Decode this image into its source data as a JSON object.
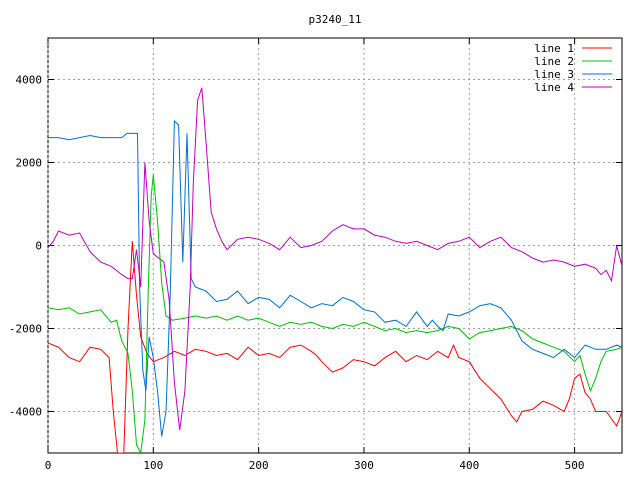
{
  "chart_data": {
    "type": "line",
    "title": "p3240_11",
    "xlabel": "",
    "ylabel": "",
    "xlim": [
      0,
      545
    ],
    "ylim": [
      -5000,
      5000
    ],
    "xticks": [
      0,
      100,
      200,
      300,
      400,
      500
    ],
    "yticks": [
      -4000,
      -2000,
      0,
      2000,
      4000
    ],
    "grid": true,
    "legend_position": "top-right",
    "series": [
      {
        "name": "line 1",
        "color": "#ff0000",
        "points": [
          [
            0,
            -2350
          ],
          [
            10,
            -2450
          ],
          [
            20,
            -2700
          ],
          [
            30,
            -2800
          ],
          [
            40,
            -2450
          ],
          [
            50,
            -2500
          ],
          [
            58,
            -2700
          ],
          [
            62,
            -4000
          ],
          [
            66,
            -5000
          ],
          [
            72,
            -5000
          ],
          [
            76,
            -2000
          ],
          [
            80,
            100
          ],
          [
            84,
            -1200
          ],
          [
            88,
            -2200
          ],
          [
            94,
            -2600
          ],
          [
            100,
            -2800
          ],
          [
            110,
            -2700
          ],
          [
            120,
            -2550
          ],
          [
            130,
            -2650
          ],
          [
            140,
            -2500
          ],
          [
            150,
            -2550
          ],
          [
            160,
            -2650
          ],
          [
            170,
            -2600
          ],
          [
            180,
            -2750
          ],
          [
            190,
            -2450
          ],
          [
            200,
            -2650
          ],
          [
            210,
            -2600
          ],
          [
            220,
            -2700
          ],
          [
            230,
            -2450
          ],
          [
            240,
            -2400
          ],
          [
            250,
            -2550
          ],
          [
            255,
            -2650
          ],
          [
            260,
            -2800
          ],
          [
            270,
            -3050
          ],
          [
            280,
            -2950
          ],
          [
            290,
            -2750
          ],
          [
            300,
            -2800
          ],
          [
            310,
            -2900
          ],
          [
            320,
            -2700
          ],
          [
            330,
            -2550
          ],
          [
            340,
            -2800
          ],
          [
            350,
            -2650
          ],
          [
            360,
            -2750
          ],
          [
            370,
            -2550
          ],
          [
            380,
            -2700
          ],
          [
            385,
            -2400
          ],
          [
            390,
            -2700
          ],
          [
            400,
            -2800
          ],
          [
            410,
            -3200
          ],
          [
            420,
            -3450
          ],
          [
            430,
            -3700
          ],
          [
            440,
            -4100
          ],
          [
            445,
            -4250
          ],
          [
            450,
            -4000
          ],
          [
            460,
            -3950
          ],
          [
            470,
            -3750
          ],
          [
            480,
            -3850
          ],
          [
            490,
            -4000
          ],
          [
            495,
            -3700
          ],
          [
            500,
            -3200
          ],
          [
            505,
            -3100
          ],
          [
            510,
            -3550
          ],
          [
            515,
            -3700
          ],
          [
            520,
            -4000
          ],
          [
            530,
            -4000
          ],
          [
            540,
            -4350
          ],
          [
            545,
            -4000
          ]
        ]
      },
      {
        "name": "line 2",
        "color": "#00c000",
        "points": [
          [
            0,
            -1500
          ],
          [
            10,
            -1550
          ],
          [
            20,
            -1500
          ],
          [
            30,
            -1650
          ],
          [
            40,
            -1600
          ],
          [
            50,
            -1550
          ],
          [
            60,
            -1850
          ],
          [
            65,
            -1800
          ],
          [
            70,
            -2300
          ],
          [
            76,
            -2600
          ],
          [
            80,
            -3500
          ],
          [
            84,
            -4800
          ],
          [
            88,
            -5000
          ],
          [
            92,
            -4200
          ],
          [
            95,
            -1200
          ],
          [
            98,
            1200
          ],
          [
            100,
            1700
          ],
          [
            104,
            600
          ],
          [
            108,
            -900
          ],
          [
            112,
            -1700
          ],
          [
            118,
            -1800
          ],
          [
            130,
            -1750
          ],
          [
            140,
            -1700
          ],
          [
            150,
            -1750
          ],
          [
            160,
            -1700
          ],
          [
            170,
            -1800
          ],
          [
            180,
            -1700
          ],
          [
            190,
            -1800
          ],
          [
            200,
            -1750
          ],
          [
            210,
            -1850
          ],
          [
            220,
            -1950
          ],
          [
            230,
            -1850
          ],
          [
            240,
            -1900
          ],
          [
            250,
            -1850
          ],
          [
            260,
            -1950
          ],
          [
            270,
            -2000
          ],
          [
            280,
            -1900
          ],
          [
            290,
            -1950
          ],
          [
            300,
            -1850
          ],
          [
            310,
            -1950
          ],
          [
            320,
            -2050
          ],
          [
            330,
            -2000
          ],
          [
            340,
            -2100
          ],
          [
            350,
            -2050
          ],
          [
            360,
            -2100
          ],
          [
            370,
            -2050
          ],
          [
            380,
            -1950
          ],
          [
            390,
            -2000
          ],
          [
            400,
            -2250
          ],
          [
            410,
            -2100
          ],
          [
            420,
            -2050
          ],
          [
            430,
            -2000
          ],
          [
            440,
            -1950
          ],
          [
            450,
            -2050
          ],
          [
            460,
            -2250
          ],
          [
            470,
            -2350
          ],
          [
            480,
            -2450
          ],
          [
            490,
            -2550
          ],
          [
            500,
            -2800
          ],
          [
            505,
            -2650
          ],
          [
            510,
            -3100
          ],
          [
            515,
            -3500
          ],
          [
            520,
            -3200
          ],
          [
            525,
            -2800
          ],
          [
            530,
            -2550
          ],
          [
            540,
            -2500
          ],
          [
            545,
            -2450
          ]
        ]
      },
      {
        "name": "line 3",
        "color": "#0070d0",
        "points": [
          [
            0,
            2600
          ],
          [
            10,
            2600
          ],
          [
            20,
            2550
          ],
          [
            30,
            2600
          ],
          [
            40,
            2650
          ],
          [
            50,
            2600
          ],
          [
            60,
            2600
          ],
          [
            70,
            2600
          ],
          [
            75,
            2700
          ],
          [
            85,
            2700
          ],
          [
            87,
            -1000
          ],
          [
            90,
            -3000
          ],
          [
            93,
            -3500
          ],
          [
            96,
            -2200
          ],
          [
            100,
            -2700
          ],
          [
            104,
            -3500
          ],
          [
            108,
            -4600
          ],
          [
            112,
            -4000
          ],
          [
            116,
            -1200
          ],
          [
            120,
            3000
          ],
          [
            124,
            2900
          ],
          [
            128,
            -400
          ],
          [
            132,
            2700
          ],
          [
            136,
            -800
          ],
          [
            140,
            -1000
          ],
          [
            150,
            -1100
          ],
          [
            160,
            -1350
          ],
          [
            170,
            -1300
          ],
          [
            180,
            -1100
          ],
          [
            190,
            -1400
          ],
          [
            200,
            -1250
          ],
          [
            210,
            -1300
          ],
          [
            220,
            -1500
          ],
          [
            230,
            -1200
          ],
          [
            240,
            -1350
          ],
          [
            250,
            -1500
          ],
          [
            260,
            -1400
          ],
          [
            270,
            -1450
          ],
          [
            280,
            -1250
          ],
          [
            290,
            -1350
          ],
          [
            300,
            -1550
          ],
          [
            310,
            -1600
          ],
          [
            320,
            -1850
          ],
          [
            330,
            -1800
          ],
          [
            340,
            -1950
          ],
          [
            350,
            -1600
          ],
          [
            360,
            -1950
          ],
          [
            365,
            -1800
          ],
          [
            370,
            -1950
          ],
          [
            375,
            -2050
          ],
          [
            380,
            -1650
          ],
          [
            390,
            -1700
          ],
          [
            400,
            -1600
          ],
          [
            410,
            -1450
          ],
          [
            420,
            -1400
          ],
          [
            430,
            -1500
          ],
          [
            440,
            -1800
          ],
          [
            450,
            -2300
          ],
          [
            460,
            -2500
          ],
          [
            470,
            -2600
          ],
          [
            480,
            -2700
          ],
          [
            490,
            -2500
          ],
          [
            500,
            -2700
          ],
          [
            510,
            -2400
          ],
          [
            520,
            -2500
          ],
          [
            530,
            -2500
          ],
          [
            540,
            -2400
          ],
          [
            545,
            -2450
          ]
        ]
      },
      {
        "name": "line 4",
        "color": "#c000c0",
        "points": [
          [
            0,
            -50
          ],
          [
            5,
            100
          ],
          [
            10,
            350
          ],
          [
            20,
            250
          ],
          [
            30,
            300
          ],
          [
            40,
            -150
          ],
          [
            50,
            -400
          ],
          [
            60,
            -500
          ],
          [
            70,
            -700
          ],
          [
            76,
            -800
          ],
          [
            80,
            -800
          ],
          [
            84,
            -100
          ],
          [
            88,
            -1000
          ],
          [
            92,
            2000
          ],
          [
            96,
            600
          ],
          [
            100,
            -200
          ],
          [
            110,
            -400
          ],
          [
            115,
            -1300
          ],
          [
            120,
            -3300
          ],
          [
            125,
            -4450
          ],
          [
            130,
            -3500
          ],
          [
            135,
            -1000
          ],
          [
            138,
            1500
          ],
          [
            142,
            3500
          ],
          [
            146,
            3800
          ],
          [
            150,
            2500
          ],
          [
            155,
            800
          ],
          [
            160,
            400
          ],
          [
            165,
            100
          ],
          [
            170,
            -100
          ],
          [
            180,
            150
          ],
          [
            190,
            200
          ],
          [
            200,
            150
          ],
          [
            210,
            50
          ],
          [
            220,
            -100
          ],
          [
            230,
            200
          ],
          [
            240,
            -50
          ],
          [
            250,
            0
          ],
          [
            260,
            100
          ],
          [
            270,
            350
          ],
          [
            280,
            500
          ],
          [
            290,
            400
          ],
          [
            300,
            400
          ],
          [
            310,
            250
          ],
          [
            320,
            200
          ],
          [
            330,
            100
          ],
          [
            340,
            50
          ],
          [
            350,
            100
          ],
          [
            360,
            0
          ],
          [
            370,
            -100
          ],
          [
            380,
            50
          ],
          [
            390,
            100
          ],
          [
            400,
            200
          ],
          [
            410,
            -50
          ],
          [
            420,
            100
          ],
          [
            430,
            200
          ],
          [
            440,
            -50
          ],
          [
            450,
            -150
          ],
          [
            460,
            -300
          ],
          [
            470,
            -400
          ],
          [
            480,
            -350
          ],
          [
            490,
            -400
          ],
          [
            500,
            -500
          ],
          [
            510,
            -450
          ],
          [
            520,
            -550
          ],
          [
            525,
            -700
          ],
          [
            530,
            -600
          ],
          [
            535,
            -850
          ],
          [
            540,
            0
          ],
          [
            545,
            -500
          ]
        ]
      }
    ]
  }
}
